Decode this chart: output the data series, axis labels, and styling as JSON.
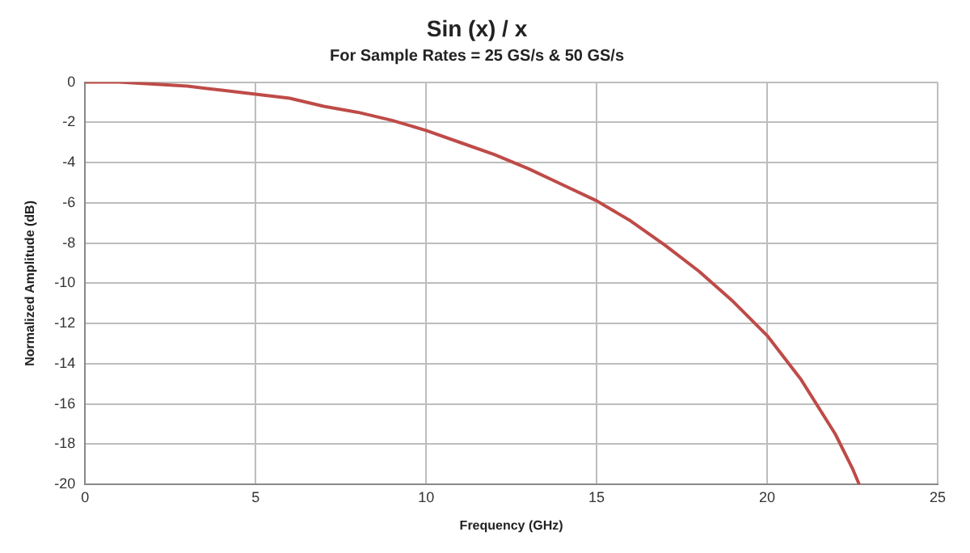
{
  "chart_data": {
    "type": "line",
    "title": "Sin (x) / x",
    "subtitle": "For Sample Rates = 25 GS/s & 50 GS/s",
    "xlabel": "Frequency (GHz)",
    "ylabel": "Normalized Amplitude (dB)",
    "x": [
      0,
      1,
      2,
      3,
      4,
      5,
      6,
      7,
      8,
      9,
      10,
      11,
      12,
      13,
      14,
      15,
      16,
      17,
      18,
      19,
      20,
      21,
      22,
      22.5,
      22.7
    ],
    "series": [
      {
        "color": "#be4b48",
        "values": [
          0,
          0,
          -0.1,
          -0.2,
          -0.4,
          -0.6,
          -0.8,
          -1.2,
          -1.5,
          -1.9,
          -2.4,
          -3,
          -3.6,
          -4.3,
          -5.1,
          -5.9,
          -6.9,
          -8.1,
          -9.4,
          -10.9,
          -12.6,
          -14.8,
          -17.5,
          -19.2,
          -20
        ]
      }
    ],
    "xlim": [
      0,
      25
    ],
    "xticks": [
      0,
      5,
      10,
      15,
      20,
      25
    ],
    "ylim": [
      -20,
      0
    ],
    "yticks": [
      -20,
      -18,
      -16,
      -14,
      -12,
      -10,
      -8,
      -6,
      -4,
      -2,
      0
    ],
    "grid": true,
    "legend": false,
    "marker": "none",
    "line_style": "solid"
  }
}
